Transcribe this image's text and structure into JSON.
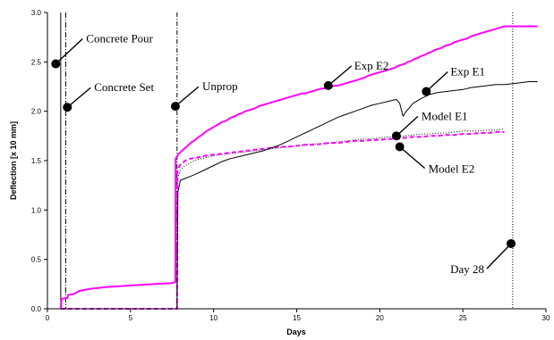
{
  "chart_data": {
    "type": "line",
    "xlabel": "Days",
    "ylabel": "Deflection [x 10 mm]",
    "xlim": [
      0,
      30
    ],
    "ylim": [
      0,
      3
    ],
    "x_ticks": [
      0,
      5,
      10,
      15,
      20,
      25,
      30
    ],
    "y_ticks": [
      0,
      0.5,
      1,
      1.5,
      2,
      2.5,
      3
    ],
    "x_tick_labels": [
      "0",
      "5",
      "10",
      "15",
      "20",
      "25",
      "30"
    ],
    "y_tick_labels": [
      "0.0",
      "0.5",
      "1.0",
      "1.5",
      "2.0",
      "2.5",
      "3.0"
    ],
    "grid": false,
    "legend": "none",
    "colors": {
      "exp_e2": "#ff00ff",
      "exp_e1": "#000000",
      "model_e1": "#000000",
      "model_e2": "#ff00ff"
    },
    "events": [
      {
        "label": "Concrete Pour",
        "x": 0.8
      },
      {
        "label": "Concrete Set",
        "x": 1.1
      },
      {
        "label": "Unprop",
        "x": 7.8
      },
      {
        "label": "Day 28",
        "x": 28
      }
    ],
    "series": [
      {
        "name": "Exp E2",
        "points": [
          [
            0.8,
            0
          ],
          [
            0.85,
            0.1
          ],
          [
            1.2,
            0.11
          ],
          [
            1.25,
            0.14
          ],
          [
            1.6,
            0.15
          ],
          [
            1.9,
            0.18
          ],
          [
            2.5,
            0.2
          ],
          [
            3.5,
            0.22
          ],
          [
            4.5,
            0.23
          ],
          [
            5.5,
            0.24
          ],
          [
            6.5,
            0.25
          ],
          [
            7.5,
            0.26
          ],
          [
            7.7,
            0.27
          ],
          [
            7.72,
            1.52
          ],
          [
            7.9,
            1.57
          ],
          [
            8.1,
            1.6
          ],
          [
            8.3,
            1.63
          ],
          [
            8.5,
            1.66
          ],
          [
            8.7,
            1.69
          ],
          [
            8.9,
            1.71
          ],
          [
            9.1,
            1.74
          ],
          [
            9.3,
            1.76
          ],
          [
            9.5,
            1.79
          ],
          [
            9.7,
            1.81
          ],
          [
            9.9,
            1.83
          ],
          [
            10.1,
            1.85
          ],
          [
            10.3,
            1.87
          ],
          [
            10.5,
            1.89
          ],
          [
            10.7,
            1.9
          ],
          [
            10.9,
            1.92
          ],
          [
            11.1,
            1.94
          ],
          [
            11.3,
            1.95
          ],
          [
            11.5,
            1.97
          ],
          [
            11.7,
            1.98
          ],
          [
            11.9,
            2.0
          ],
          [
            12.1,
            2.01
          ],
          [
            12.3,
            2.02
          ],
          [
            12.5,
            2.03
          ],
          [
            12.7,
            2.05
          ],
          [
            12.9,
            2.06
          ],
          [
            13.1,
            2.07
          ],
          [
            13.3,
            2.08
          ],
          [
            13.5,
            2.09
          ],
          [
            13.7,
            2.1
          ],
          [
            13.9,
            2.11
          ],
          [
            14.1,
            2.12
          ],
          [
            14.3,
            2.13
          ],
          [
            14.5,
            2.14
          ],
          [
            14.7,
            2.15
          ],
          [
            14.9,
            2.16
          ],
          [
            15.1,
            2.17
          ],
          [
            15.3,
            2.18
          ],
          [
            15.5,
            2.18
          ],
          [
            15.7,
            2.19
          ],
          [
            15.9,
            2.2
          ],
          [
            16.1,
            2.21
          ],
          [
            16.3,
            2.22
          ],
          [
            16.5,
            2.23
          ],
          [
            16.7,
            2.23
          ],
          [
            16.9,
            2.24
          ],
          [
            17.1,
            2.25
          ],
          [
            17.3,
            2.26
          ],
          [
            17.5,
            2.26
          ],
          [
            17.7,
            2.27
          ],
          [
            17.9,
            2.28
          ],
          [
            18.1,
            2.29
          ],
          [
            18.3,
            2.3
          ],
          [
            18.5,
            2.31
          ],
          [
            18.7,
            2.32
          ],
          [
            18.9,
            2.33
          ],
          [
            19.1,
            2.34
          ],
          [
            19.3,
            2.36
          ],
          [
            19.5,
            2.37
          ],
          [
            19.7,
            2.38
          ],
          [
            19.9,
            2.39
          ],
          [
            20.1,
            2.4
          ],
          [
            20.3,
            2.41
          ],
          [
            20.5,
            2.42
          ],
          [
            20.7,
            2.43
          ],
          [
            20.9,
            2.44
          ],
          [
            21.1,
            2.46
          ],
          [
            21.3,
            2.47
          ],
          [
            21.5,
            2.48
          ],
          [
            21.7,
            2.5
          ],
          [
            21.9,
            2.51
          ],
          [
            22.1,
            2.53
          ],
          [
            22.3,
            2.54
          ],
          [
            22.5,
            2.56
          ],
          [
            22.7,
            2.57
          ],
          [
            22.9,
            2.59
          ],
          [
            23.1,
            2.6
          ],
          [
            23.3,
            2.62
          ],
          [
            23.5,
            2.63
          ],
          [
            23.7,
            2.64
          ],
          [
            23.9,
            2.66
          ],
          [
            24.1,
            2.67
          ],
          [
            24.3,
            2.68
          ],
          [
            24.5,
            2.7
          ],
          [
            24.7,
            2.71
          ],
          [
            24.9,
            2.72
          ],
          [
            25.1,
            2.73
          ],
          [
            25.3,
            2.74
          ],
          [
            25.5,
            2.76
          ],
          [
            25.7,
            2.77
          ],
          [
            25.9,
            2.78
          ],
          [
            26.1,
            2.79
          ],
          [
            26.3,
            2.8
          ],
          [
            26.5,
            2.81
          ],
          [
            26.7,
            2.82
          ],
          [
            26.9,
            2.83
          ],
          [
            27.1,
            2.84
          ],
          [
            27.3,
            2.85
          ],
          [
            27.5,
            2.86
          ],
          [
            29.5,
            2.86
          ]
        ]
      },
      {
        "name": "Exp E1",
        "points": [
          [
            7.8,
            0
          ],
          [
            7.85,
            1.18
          ],
          [
            8.0,
            1.3
          ],
          [
            8.3,
            1.32
          ],
          [
            8.6,
            1.34
          ],
          [
            9.0,
            1.37
          ],
          [
            9.5,
            1.41
          ],
          [
            10.0,
            1.45
          ],
          [
            10.5,
            1.49
          ],
          [
            11.0,
            1.52
          ],
          [
            11.5,
            1.54
          ],
          [
            12.0,
            1.56
          ],
          [
            12.5,
            1.58
          ],
          [
            13.0,
            1.6
          ],
          [
            13.5,
            1.63
          ],
          [
            14.0,
            1.66
          ],
          [
            14.5,
            1.7
          ],
          [
            15.0,
            1.74
          ],
          [
            15.5,
            1.78
          ],
          [
            16.0,
            1.82
          ],
          [
            16.5,
            1.86
          ],
          [
            17.0,
            1.9
          ],
          [
            17.5,
            1.94
          ],
          [
            18.0,
            1.97
          ],
          [
            18.5,
            2.0
          ],
          [
            19.0,
            2.03
          ],
          [
            19.5,
            2.06
          ],
          [
            20.0,
            2.08
          ],
          [
            20.5,
            2.1
          ],
          [
            21.0,
            2.12
          ],
          [
            21.2,
            2.08
          ],
          [
            21.4,
            1.95
          ],
          [
            21.6,
            2.0
          ],
          [
            22.0,
            2.08
          ],
          [
            22.5,
            2.13
          ],
          [
            23.0,
            2.17
          ],
          [
            23.5,
            2.19
          ],
          [
            24.0,
            2.2
          ],
          [
            24.5,
            2.21
          ],
          [
            25.0,
            2.22
          ],
          [
            25.5,
            2.24
          ],
          [
            26.0,
            2.25
          ],
          [
            26.5,
            2.26
          ],
          [
            27.0,
            2.27
          ],
          [
            27.5,
            2.27
          ],
          [
            28.0,
            2.28
          ],
          [
            28.5,
            2.29
          ],
          [
            29.0,
            2.3
          ],
          [
            29.5,
            2.3
          ]
        ]
      },
      {
        "name": "Model E1",
        "points": [
          [
            0.8,
            0
          ],
          [
            7.8,
            0
          ],
          [
            7.82,
            1.32
          ],
          [
            8.0,
            1.4
          ],
          [
            8.3,
            1.45
          ],
          [
            8.6,
            1.48
          ],
          [
            9.0,
            1.51
          ],
          [
            9.5,
            1.53
          ],
          [
            10.0,
            1.55
          ],
          [
            10.5,
            1.56
          ],
          [
            11.0,
            1.57
          ],
          [
            11.5,
            1.58
          ],
          [
            12.0,
            1.59
          ],
          [
            12.5,
            1.6
          ],
          [
            13.0,
            1.61
          ],
          [
            13.5,
            1.62
          ],
          [
            14.0,
            1.63
          ],
          [
            14.5,
            1.64
          ],
          [
            15.0,
            1.65
          ],
          [
            15.5,
            1.66
          ],
          [
            16.0,
            1.67
          ],
          [
            16.5,
            1.67
          ],
          [
            17.0,
            1.68
          ],
          [
            17.5,
            1.69
          ],
          [
            18.0,
            1.7
          ],
          [
            18.5,
            1.71
          ],
          [
            19.0,
            1.72
          ],
          [
            19.5,
            1.72
          ],
          [
            20.0,
            1.73
          ],
          [
            20.5,
            1.74
          ],
          [
            21.0,
            1.74
          ],
          [
            21.5,
            1.75
          ],
          [
            22.0,
            1.76
          ],
          [
            22.5,
            1.77
          ],
          [
            23.0,
            1.77
          ],
          [
            23.5,
            1.78
          ],
          [
            24.0,
            1.78
          ],
          [
            24.5,
            1.79
          ],
          [
            25.0,
            1.8
          ],
          [
            25.5,
            1.8
          ],
          [
            26.0,
            1.8
          ],
          [
            26.5,
            1.81
          ],
          [
            27.0,
            1.81
          ],
          [
            27.5,
            1.82
          ]
        ]
      },
      {
        "name": "Model E2",
        "points": [
          [
            0.8,
            0
          ],
          [
            7.8,
            0
          ],
          [
            7.82,
            1.4
          ],
          [
            8.0,
            1.46
          ],
          [
            8.3,
            1.5
          ],
          [
            8.6,
            1.52
          ],
          [
            9.0,
            1.53
          ],
          [
            9.5,
            1.55
          ],
          [
            10.0,
            1.56
          ],
          [
            10.5,
            1.57
          ],
          [
            11.0,
            1.58
          ],
          [
            11.5,
            1.59
          ],
          [
            12.0,
            1.6
          ],
          [
            12.5,
            1.61
          ],
          [
            13.0,
            1.62
          ],
          [
            13.5,
            1.63
          ],
          [
            14.0,
            1.64
          ],
          [
            14.5,
            1.64
          ],
          [
            15.0,
            1.65
          ],
          [
            15.5,
            1.66
          ],
          [
            16.0,
            1.66
          ],
          [
            16.5,
            1.67
          ],
          [
            17.0,
            1.68
          ],
          [
            17.5,
            1.68
          ],
          [
            18.0,
            1.69
          ],
          [
            18.5,
            1.7
          ],
          [
            19.0,
            1.7
          ],
          [
            19.5,
            1.71
          ],
          [
            20.0,
            1.71
          ],
          [
            20.5,
            1.72
          ],
          [
            21.0,
            1.72
          ],
          [
            21.5,
            1.73
          ],
          [
            22.0,
            1.74
          ],
          [
            22.5,
            1.74
          ],
          [
            23.0,
            1.75
          ],
          [
            23.5,
            1.75
          ],
          [
            24.0,
            1.76
          ],
          [
            24.5,
            1.76
          ],
          [
            25.0,
            1.77
          ],
          [
            25.5,
            1.77
          ],
          [
            26.0,
            1.78
          ],
          [
            26.5,
            1.78
          ],
          [
            27.0,
            1.79
          ],
          [
            27.5,
            1.79
          ]
        ]
      }
    ],
    "annotations": [
      {
        "text": "Concrete Pour",
        "x": 0.5,
        "y": 2.48
      },
      {
        "text": "Concrete Set",
        "x": 1.2,
        "y": 2.04
      },
      {
        "text": "Unprop",
        "x": 7.7,
        "y": 2.05
      },
      {
        "text": "Exp E2",
        "x": 16.9,
        "y": 2.26
      },
      {
        "text": "Exp E1",
        "x": 22.8,
        "y": 2.2
      },
      {
        "text": "Model E1",
        "x": 21.0,
        "y": 1.75
      },
      {
        "text": "Model E2",
        "x": 21.2,
        "y": 1.64
      },
      {
        "text": "Day 28",
        "x": 27.9,
        "y": 0.66
      }
    ]
  }
}
